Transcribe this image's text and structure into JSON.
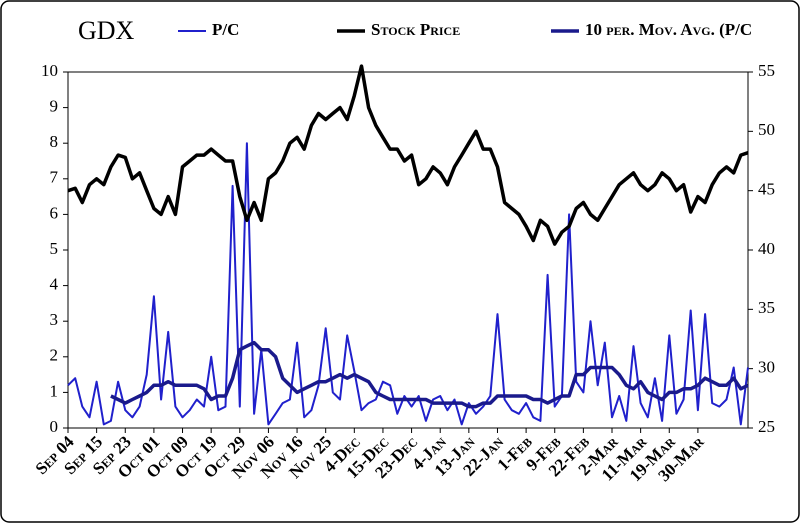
{
  "chart_data": {
    "type": "line",
    "title": "GDX",
    "legend": "top",
    "categories": [
      "Sep 04",
      null,
      null,
      null,
      "Sep 15",
      null,
      null,
      null,
      "Sep 23",
      null,
      null,
      null,
      "Oct 01",
      null,
      null,
      null,
      "Oct 09",
      null,
      null,
      null,
      "Oct 19",
      null,
      null,
      null,
      "Oct 29",
      null,
      null,
      null,
      "Nov 06",
      null,
      null,
      null,
      "Nov 16",
      null,
      null,
      null,
      "Nov 25",
      null,
      null,
      null,
      "4-Dec",
      null,
      null,
      null,
      "15-Dec",
      null,
      null,
      null,
      "23-Dec",
      null,
      null,
      null,
      "4-Jan",
      null,
      null,
      null,
      "13-Jan",
      null,
      null,
      null,
      "22-Jan",
      null,
      null,
      null,
      "1-Feb",
      null,
      null,
      null,
      "9-Feb",
      null,
      null,
      null,
      "22-Feb",
      null,
      null,
      null,
      "2-Mar",
      null,
      null,
      null,
      "11-Mar",
      null,
      null,
      null,
      "19-Mar",
      null,
      null,
      null,
      "30-Mar",
      null,
      null,
      null,
      null,
      null,
      null,
      null
    ],
    "ylim": [
      0,
      10
    ],
    "yticks": [
      0,
      1,
      2,
      3,
      4,
      5,
      6,
      7,
      8,
      9,
      10
    ],
    "y2lim": [
      25,
      55
    ],
    "y2ticks": [
      25,
      30,
      35,
      40,
      45,
      50,
      55
    ],
    "series": [
      {
        "name": "P/C",
        "color": "#2020cc",
        "width": 2,
        "values": [
          1.2,
          1.4,
          0.6,
          0.3,
          1.3,
          0.1,
          0.2,
          1.3,
          0.5,
          0.3,
          0.6,
          1.5,
          3.7,
          0.8,
          2.7,
          0.6,
          0.3,
          0.5,
          0.8,
          0.6,
          2.0,
          0.5,
          0.6,
          6.8,
          0.6,
          8.0,
          0.4,
          2.2,
          0.1,
          0.4,
          0.7,
          0.8,
          2.4,
          0.3,
          0.5,
          1.2,
          2.8,
          1.0,
          0.8,
          2.6,
          1.6,
          0.5,
          0.7,
          0.8,
          1.3,
          1.2,
          0.4,
          0.9,
          0.6,
          0.9,
          0.2,
          0.8,
          0.9,
          0.5,
          0.8,
          0.1,
          0.7,
          0.4,
          0.6,
          0.9,
          3.2,
          0.8,
          0.5,
          0.4,
          0.7,
          0.3,
          0.2,
          4.3,
          0.6,
          0.9,
          6.0,
          1.3,
          1.0,
          3.0,
          1.2,
          2.4,
          0.3,
          0.9,
          0.2,
          2.3,
          0.7,
          0.3,
          1.4,
          0.2,
          2.6,
          0.4,
          0.8,
          3.3,
          0.5,
          3.2,
          0.7,
          0.6,
          0.8,
          1.7,
          0.1,
          1.7
        ]
      },
      {
        "name": "Stock Price",
        "color": "#000000",
        "width": 3.5,
        "axis": "y2",
        "values": [
          45,
          45.2,
          44,
          45.5,
          46,
          45.5,
          47,
          48,
          47.8,
          46,
          46.5,
          45,
          43.5,
          43,
          44.5,
          43,
          47,
          47.5,
          48,
          48,
          48.5,
          48,
          47.5,
          47.5,
          44.5,
          42.5,
          44,
          42.5,
          46,
          46.5,
          47.5,
          49,
          49.5,
          48.5,
          50.5,
          51.5,
          51,
          51.5,
          52,
          51,
          53,
          55.5,
          52,
          50.5,
          49.5,
          48.5,
          48.5,
          47.5,
          48,
          45.5,
          46,
          47,
          46.5,
          45.5,
          47,
          48,
          49,
          50,
          48.5,
          48.5,
          47,
          44,
          43.5,
          43,
          42,
          40.8,
          42.5,
          42,
          40.5,
          41.5,
          42,
          43.5,
          44,
          43,
          42.5,
          43.5,
          44.5,
          45.5,
          46,
          46.5,
          45.5,
          45,
          45.5,
          46.5,
          46,
          45,
          45.5,
          43.2,
          44.5,
          44,
          45.5,
          46.5,
          47,
          46.5,
          48,
          48.2
        ]
      },
      {
        "name": "10 per. Mov. Avg. (P/C",
        "color": "#1a1a8c",
        "width": 3.5,
        "values": [
          null,
          null,
          null,
          null,
          null,
          null,
          0.9,
          0.8,
          0.7,
          0.8,
          0.9,
          1.0,
          1.2,
          1.2,
          1.3,
          1.2,
          1.2,
          1.2,
          1.2,
          1.1,
          0.8,
          0.9,
          0.9,
          1.4,
          2.2,
          2.3,
          2.4,
          2.2,
          2.2,
          2.0,
          1.4,
          1.2,
          1.0,
          1.1,
          1.2,
          1.3,
          1.3,
          1.4,
          1.5,
          1.4,
          1.5,
          1.4,
          1.3,
          1.0,
          0.9,
          0.8,
          0.8,
          0.8,
          0.8,
          0.8,
          0.8,
          0.7,
          0.7,
          0.7,
          0.7,
          0.7,
          0.6,
          0.6,
          0.7,
          0.7,
          0.9,
          0.9,
          0.9,
          0.9,
          0.9,
          0.8,
          0.8,
          0.7,
          0.8,
          0.9,
          0.9,
          1.5,
          1.5,
          1.7,
          1.7,
          1.7,
          1.7,
          1.5,
          1.2,
          1.1,
          1.3,
          1.0,
          0.9,
          0.8,
          1.0,
          1.0,
          1.1,
          1.1,
          1.2,
          1.4,
          1.3,
          1.2,
          1.2,
          1.4,
          1.1,
          1.2
        ]
      }
    ]
  }
}
